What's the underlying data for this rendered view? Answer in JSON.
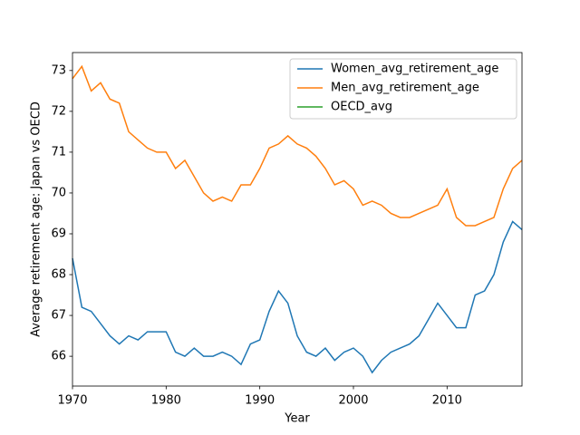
{
  "chart_data": {
    "type": "line",
    "x": [
      1970,
      1971,
      1972,
      1973,
      1974,
      1975,
      1976,
      1977,
      1978,
      1979,
      1980,
      1981,
      1982,
      1983,
      1984,
      1985,
      1986,
      1987,
      1988,
      1989,
      1990,
      1991,
      1992,
      1993,
      1994,
      1995,
      1996,
      1997,
      1998,
      1999,
      2000,
      2001,
      2002,
      2003,
      2004,
      2005,
      2006,
      2007,
      2008,
      2009,
      2010,
      2011,
      2012,
      2013,
      2014,
      2015,
      2016,
      2017,
      2018
    ],
    "series": [
      {
        "name": "Women_avg_retirement_age",
        "color": "#1f77b4",
        "values": [
          68.4,
          67.2,
          67.1,
          66.8,
          66.5,
          66.3,
          66.5,
          66.4,
          66.6,
          66.6,
          66.6,
          66.1,
          66.0,
          66.2,
          66.0,
          66.0,
          66.1,
          66.0,
          65.8,
          66.3,
          66.4,
          67.1,
          67.6,
          67.3,
          66.5,
          66.1,
          66.0,
          66.2,
          65.9,
          66.1,
          66.2,
          66.0,
          65.6,
          65.9,
          66.1,
          66.2,
          66.3,
          66.5,
          66.9,
          67.3,
          67.0,
          66.7,
          66.7,
          67.5,
          67.6,
          68.0,
          68.8,
          69.3,
          69.1
        ]
      },
      {
        "name": "Men_avg_retirement_age",
        "color": "#ff7f0e",
        "values": [
          72.8,
          73.1,
          72.5,
          72.7,
          72.3,
          72.2,
          71.5,
          71.3,
          71.1,
          71.0,
          71.0,
          70.6,
          70.8,
          70.4,
          70.0,
          69.8,
          69.9,
          69.8,
          70.2,
          70.2,
          70.6,
          71.1,
          71.2,
          71.4,
          71.2,
          71.1,
          70.9,
          70.6,
          70.2,
          70.3,
          70.1,
          69.7,
          69.8,
          69.7,
          69.5,
          69.4,
          69.4,
          69.5,
          69.6,
          69.7,
          70.1,
          69.4,
          69.2,
          69.2,
          69.3,
          69.4,
          70.1,
          70.6,
          70.8
        ]
      },
      {
        "name": "OECD_avg",
        "color": "#2ca02c",
        "values": [
          null,
          null,
          null,
          null,
          null,
          null,
          null,
          null,
          null,
          null,
          null,
          null,
          null,
          null,
          null,
          null,
          null,
          null,
          null,
          null,
          null,
          null,
          null,
          null,
          null,
          null,
          null,
          null,
          null,
          null,
          null,
          null,
          null,
          null,
          null,
          null,
          null,
          null,
          null,
          null,
          null,
          null,
          null,
          null,
          null,
          null,
          null,
          null,
          null
        ]
      }
    ],
    "xlabel": "Year",
    "ylabel": "Average retirement age: Japan vs OECD",
    "xlim": [
      1970,
      2018
    ],
    "xticks": [
      1970,
      1980,
      1990,
      2000,
      2010
    ],
    "ylim": [
      65.27,
      73.44
    ],
    "yticks": [
      66,
      67,
      68,
      69,
      70,
      71,
      72,
      73
    ],
    "legend": "upper right"
  }
}
